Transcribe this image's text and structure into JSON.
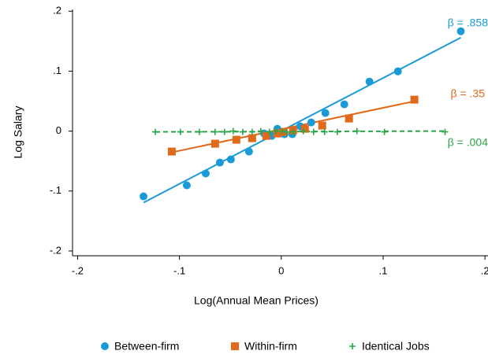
{
  "chart_data": {
    "type": "scatter",
    "x_label": "Log(Annual Mean Prices)",
    "y_label": "Log Salary",
    "xlim": [
      -0.205,
      0.203
    ],
    "ylim": [
      -0.208,
      0.203
    ],
    "xticks": [
      {
        "value": -0.2,
        "label": "-.2"
      },
      {
        "value": -0.1,
        "label": "-.1"
      },
      0,
      {
        "value": 0.1,
        "label": ".1"
      },
      {
        "value": 0.2,
        "label": ".2"
      }
    ],
    "yticks": [
      {
        "value": -0.2,
        "label": "-.2"
      },
      {
        "value": -0.1,
        "label": "-.1"
      },
      0,
      {
        "value": 0.1,
        "label": ".1"
      },
      {
        "value": 0.2,
        "label": ".2"
      }
    ],
    "grid": false,
    "legend": "bottom",
    "series": [
      {
        "name": "Between-firm",
        "color": "#1a9bd7",
        "marker": "circle",
        "annotation": "β = .858",
        "x": [
          -0.1353,
          -0.0928,
          -0.0742,
          -0.0603,
          -0.0495,
          -0.0317,
          -0.017,
          -0.0093,
          -0.0039,
          0.0031,
          0.0108,
          0.0186,
          0.0294,
          0.0433,
          0.0619,
          0.0866,
          0.1145,
          0.1763
        ],
        "values": [
          -0.1089,
          -0.0905,
          -0.0708,
          -0.0525,
          -0.0472,
          -0.0341,
          -0.0039,
          -0.0079,
          0.0039,
          -0.0052,
          -0.0052,
          0.0079,
          0.0144,
          0.0302,
          0.0446,
          0.0826,
          0.0997,
          0.1666
        ],
        "fit_x": [
          -0.1353,
          0.1763
        ],
        "fit_y": [
          -0.1193,
          0.1561
        ]
      },
      {
        "name": "Within-firm",
        "color": "#e0691a",
        "marker": "square",
        "annotation": "β = .35",
        "x": [
          -0.1075,
          -0.065,
          -0.0441,
          -0.0286,
          -0.0147,
          -0.0039,
          0.0023,
          0.0116,
          0.0232,
          0.0402,
          0.0665,
          0.1307
        ],
        "values": [
          -0.0341,
          -0.021,
          -0.0144,
          -0.0118,
          -0.0079,
          -0.0039,
          -0.0013,
          0.0013,
          0.0039,
          0.0092,
          0.021,
          0.0525
        ],
        "fit_x": [
          -0.1075,
          0.1307
        ],
        "fit_y": [
          -0.0354,
          0.0498
        ]
      },
      {
        "name": "Identical Jobs",
        "color": "#2aa54a",
        "marker": "plus",
        "annotation": "β = .004",
        "x": [
          -0.1237,
          -0.099,
          -0.0804,
          -0.065,
          -0.0557,
          -0.0472,
          -0.0379,
          -0.0286,
          -0.0201,
          -0.0116,
          -0.0054,
          0.0008,
          0.0054,
          0.0116,
          0.0216,
          0.0317,
          0.0425,
          0.055,
          0.0743,
          0.1013,
          0.1608
        ],
        "values": [
          -0.0013,
          -0.0013,
          -0.0013,
          -0.0013,
          -0.0013,
          0,
          -0.0013,
          -0.0013,
          0,
          -0.0013,
          0,
          0,
          -0.0013,
          -0.0013,
          0,
          -0.0013,
          -0.0013,
          -0.0013,
          0,
          -0.0013,
          -0.0013
        ],
        "fit_x": [
          -0.1237,
          0.1608
        ],
        "fit_y": [
          -0.0013,
          0
        ]
      }
    ]
  }
}
